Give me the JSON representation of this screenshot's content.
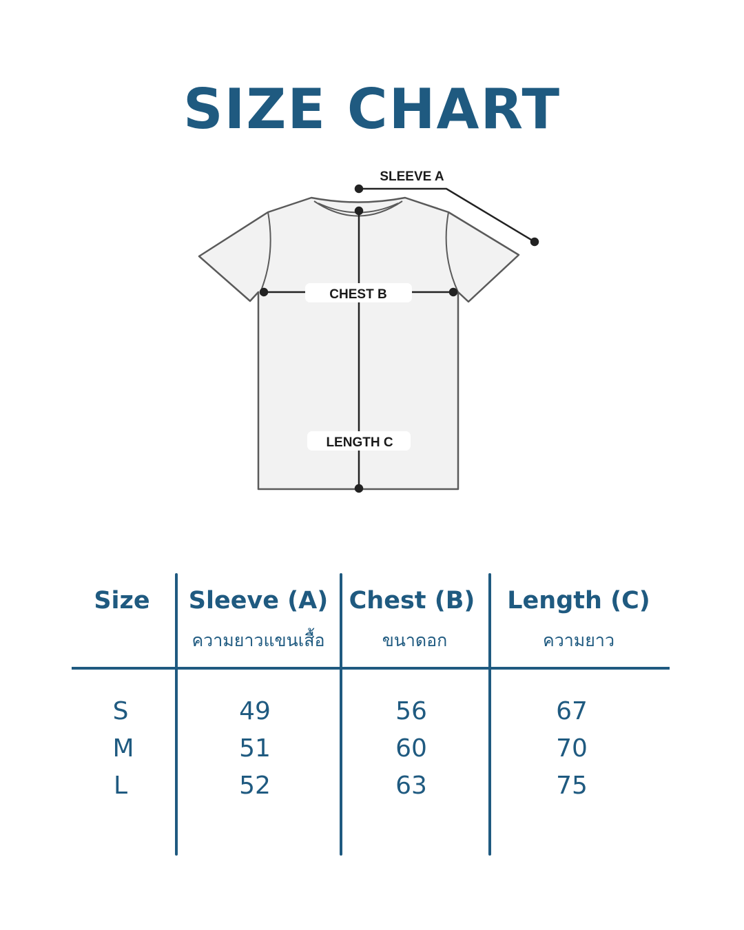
{
  "title": "SIZE CHART",
  "diagram": {
    "sleeve_label": "SLEEVE  A",
    "chest_label": "CHEST  B",
    "length_label": "LENGTH C"
  },
  "table": {
    "headers": [
      {
        "label": "Size",
        "sub": ""
      },
      {
        "label": "Sleeve (A)",
        "sub": "ความยาวแขนเสื้อ"
      },
      {
        "label": "Chest (B)",
        "sub": "ขนาดอก"
      },
      {
        "label": "Length  (C)",
        "sub": "ความยาว"
      }
    ],
    "rows": [
      [
        "S",
        "49",
        "56",
        "67"
      ],
      [
        "M",
        "51",
        "60",
        "70"
      ],
      [
        "L",
        "52",
        "63",
        "75"
      ]
    ]
  },
  "colors": {
    "accent": "#1f5a80",
    "shirt_fill": "#f2f2f2",
    "outline": "#555555"
  }
}
